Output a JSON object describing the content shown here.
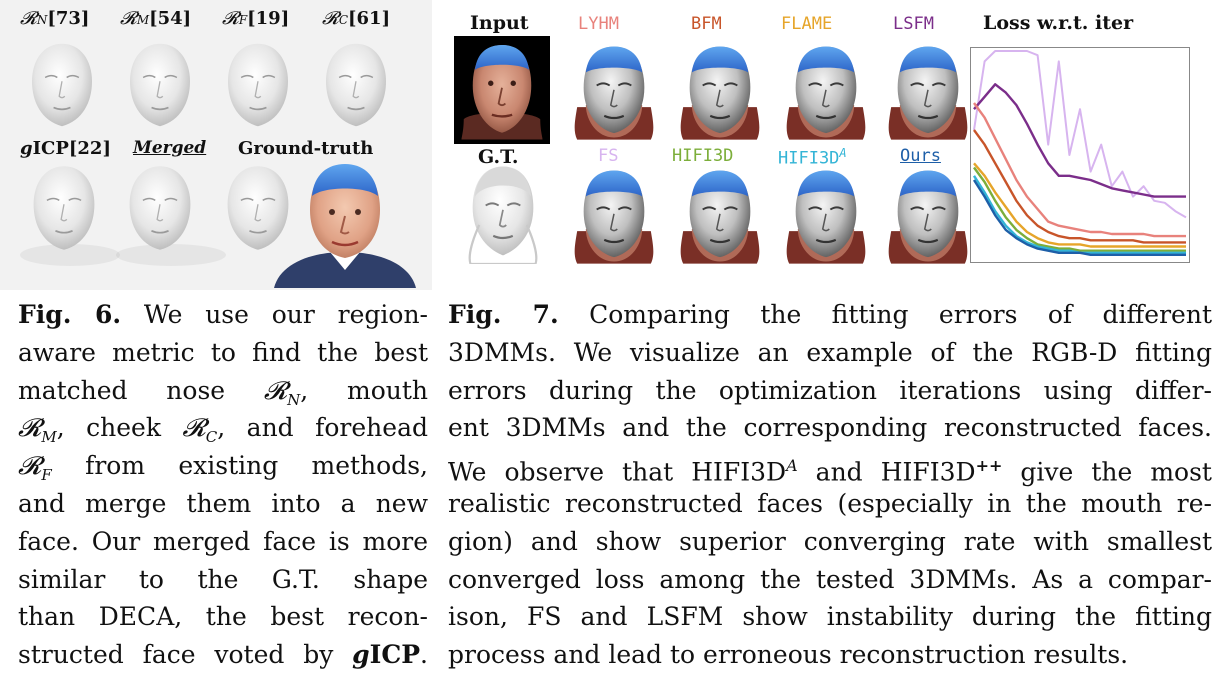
{
  "fig6": {
    "labels": {
      "nose": "𝓡N[73]",
      "mouth": "𝓡M[54]",
      "forehead": "𝓡F[19]",
      "cheek": "𝓡C[61]",
      "gicp": "gICP[22]",
      "merged": "Merged",
      "ground_truth": "Ground-truth"
    },
    "label_parts": {
      "nose": {
        "sym": "𝓡",
        "sub": "N",
        "ref": "[73]"
      },
      "mouth": {
        "sym": "𝓡",
        "sub": "M",
        "ref": "[54]"
      },
      "forehead": {
        "sym": "𝓡",
        "sub": "F",
        "ref": "[19]"
      },
      "cheek": {
        "sym": "𝓡",
        "sub": "C",
        "ref": "[61]"
      },
      "gicp": {
        "g": "g",
        "rest": "ICP[22]"
      }
    }
  },
  "fig7": {
    "labels": {
      "input": "Input",
      "lyhm": "LYHM",
      "bfm": "BFM",
      "flame": "FLAME",
      "lsfm": "LSFM",
      "loss_title": "Loss w.r.t. iter",
      "gt": "G.T.",
      "fs": "FS",
      "hifi3d": "HIFI3D",
      "hifi3da": "HIFI3DA",
      "ours": "Ours"
    },
    "label_colors": {
      "lyhm": "#e8827c",
      "bfm": "#c8552a",
      "flame": "#e6a52a",
      "lsfm": "#7b2e8a",
      "fs": "#d7b4ef",
      "hifi3d": "#7cae3a",
      "hifi3da": "#33b4d6",
      "ours": "#1e5fa8"
    }
  },
  "chart_data": {
    "type": "line",
    "title": "Loss w.r.t. iter",
    "xlabel": "",
    "ylabel": "",
    "grid": false,
    "legend": "none",
    "x": [
      0,
      1,
      2,
      3,
      4,
      5,
      6,
      7,
      8,
      9,
      10,
      11,
      12,
      13,
      14,
      15,
      16,
      17,
      18,
      19,
      20
    ],
    "xlim": [
      0,
      20
    ],
    "ylim": [
      0,
      1
    ],
    "series": [
      {
        "color": "#d7b4ef",
        "values": [
          0.62,
          0.95,
          1.0,
          1.0,
          1.0,
          1.0,
          0.98,
          0.55,
          0.95,
          0.5,
          0.72,
          0.42,
          0.55,
          0.35,
          0.42,
          0.3,
          0.35,
          0.28,
          0.27,
          0.23,
          0.2
        ]
      },
      {
        "color": "#7b2e8a",
        "values": [
          0.72,
          0.78,
          0.84,
          0.8,
          0.74,
          0.65,
          0.55,
          0.46,
          0.4,
          0.4,
          0.39,
          0.38,
          0.36,
          0.34,
          0.33,
          0.32,
          0.31,
          0.3,
          0.3,
          0.3,
          0.3
        ]
      },
      {
        "color": "#e8827c",
        "values": [
          0.75,
          0.68,
          0.58,
          0.48,
          0.38,
          0.3,
          0.24,
          0.18,
          0.16,
          0.15,
          0.14,
          0.13,
          0.13,
          0.12,
          0.12,
          0.12,
          0.12,
          0.11,
          0.11,
          0.11,
          0.11
        ]
      },
      {
        "color": "#c8552a",
        "values": [
          0.62,
          0.55,
          0.46,
          0.37,
          0.28,
          0.21,
          0.16,
          0.13,
          0.11,
          0.1,
          0.1,
          0.09,
          0.09,
          0.09,
          0.09,
          0.09,
          0.08,
          0.08,
          0.08,
          0.08,
          0.08
        ]
      },
      {
        "color": "#e6a52a",
        "values": [
          0.46,
          0.4,
          0.32,
          0.25,
          0.18,
          0.13,
          0.1,
          0.08,
          0.07,
          0.07,
          0.07,
          0.06,
          0.06,
          0.06,
          0.06,
          0.06,
          0.06,
          0.06,
          0.06,
          0.06,
          0.06
        ]
      },
      {
        "color": "#7cae3a",
        "values": [
          0.44,
          0.37,
          0.28,
          0.2,
          0.14,
          0.1,
          0.07,
          0.06,
          0.05,
          0.05,
          0.04,
          0.04,
          0.04,
          0.04,
          0.04,
          0.04,
          0.04,
          0.04,
          0.04,
          0.04,
          0.04
        ]
      },
      {
        "color": "#33b4d6",
        "values": [
          0.4,
          0.32,
          0.23,
          0.16,
          0.11,
          0.08,
          0.06,
          0.05,
          0.04,
          0.04,
          0.03,
          0.03,
          0.03,
          0.03,
          0.03,
          0.03,
          0.03,
          0.03,
          0.03,
          0.03,
          0.03
        ]
      },
      {
        "color": "#1e5fa8",
        "values": [
          0.38,
          0.3,
          0.21,
          0.14,
          0.1,
          0.07,
          0.05,
          0.04,
          0.03,
          0.03,
          0.03,
          0.02,
          0.02,
          0.02,
          0.02,
          0.02,
          0.02,
          0.02,
          0.02,
          0.02,
          0.02
        ]
      }
    ]
  },
  "caption6": {
    "label": "Fig. 6.",
    "lines": [
      " We use our region-",
      "aware metric to find the best",
      "matched nose 𝓡N, mouth",
      "𝓡M, cheek 𝓡C, and forehead",
      "𝓡F from existing methods,",
      "and merge them into a new",
      "face. Our merged face is more",
      "similar to the G.T. shape",
      "than DECA, the best recon-",
      "structed face voted by gICP."
    ]
  },
  "caption7": {
    "label": "Fig. 7.",
    "lines": [
      " Comparing the fitting errors of different",
      "3DMMs. We visualize an example of the RGB-D fitting",
      "errors during the optimization iterations using differ-",
      "ent 3DMMs and the corresponding reconstructed faces.",
      "We observe that HIFI3DA and HIFI3D++ give the most",
      "realistic reconstructed faces (especially in the mouth re-",
      "gion) and show superior converging rate with smallest",
      "converged loss among the tested 3DMMs. As a compar-",
      "ison, FS and LSFM show instability during the fitting",
      "process and lead to erroneous reconstruction results."
    ]
  }
}
